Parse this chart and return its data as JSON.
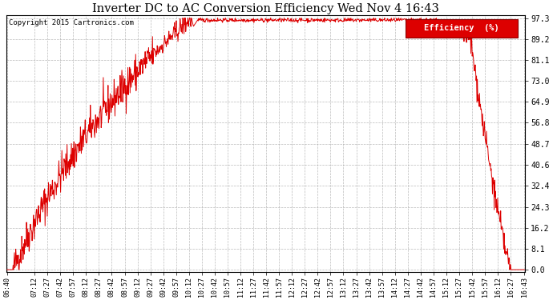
{
  "title": "Inverter DC to AC Conversion Efficiency Wed Nov 4 16:43",
  "copyright": "Copyright 2015 Cartronics.com",
  "legend_label": "Efficiency  (%)",
  "line_color": "#dd0000",
  "background_color": "#ffffff",
  "plot_bg_color": "#ffffff",
  "grid_color": "#aaaaaa",
  "legend_bg": "#dd0000",
  "legend_text_color": "#ffffff",
  "yticks": [
    0.0,
    8.1,
    16.2,
    24.3,
    32.4,
    40.6,
    48.7,
    56.8,
    64.9,
    73.0,
    81.1,
    89.2,
    97.3
  ],
  "ymin": 0.0,
  "ymax": 97.3,
  "xtick_labels": [
    "06:40",
    "07:12",
    "07:27",
    "07:42",
    "07:57",
    "08:12",
    "08:27",
    "08:42",
    "08:57",
    "09:12",
    "09:27",
    "09:42",
    "09:57",
    "10:12",
    "10:27",
    "10:42",
    "10:57",
    "11:12",
    "11:27",
    "11:42",
    "11:57",
    "12:12",
    "12:27",
    "12:42",
    "12:57",
    "13:12",
    "13:27",
    "13:42",
    "13:57",
    "14:12",
    "14:27",
    "14:42",
    "14:57",
    "15:12",
    "15:27",
    "15:42",
    "15:57",
    "16:12",
    "16:27",
    "16:43"
  ],
  "noise_seed": 42,
  "figwidth": 6.9,
  "figheight": 3.75,
  "dpi": 100
}
